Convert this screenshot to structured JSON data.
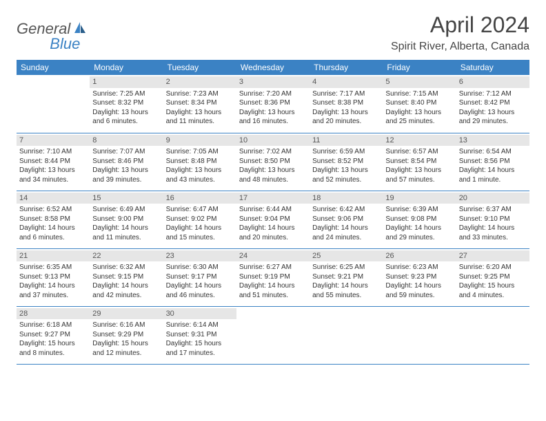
{
  "logo": {
    "part1": "General",
    "part2": "Blue"
  },
  "title": "April 2024",
  "location": "Spirit River, Alberta, Canada",
  "accent_color": "#3b82c4",
  "daynum_bg": "#e6e6e6",
  "text_color": "#333333",
  "dow": [
    "Sunday",
    "Monday",
    "Tuesday",
    "Wednesday",
    "Thursday",
    "Friday",
    "Saturday"
  ],
  "weeks": [
    [
      {
        "n": "",
        "sr": "",
        "ss": "",
        "dl1": "",
        "dl2": ""
      },
      {
        "n": "1",
        "sr": "Sunrise: 7:25 AM",
        "ss": "Sunset: 8:32 PM",
        "dl1": "Daylight: 13 hours",
        "dl2": "and 6 minutes."
      },
      {
        "n": "2",
        "sr": "Sunrise: 7:23 AM",
        "ss": "Sunset: 8:34 PM",
        "dl1": "Daylight: 13 hours",
        "dl2": "and 11 minutes."
      },
      {
        "n": "3",
        "sr": "Sunrise: 7:20 AM",
        "ss": "Sunset: 8:36 PM",
        "dl1": "Daylight: 13 hours",
        "dl2": "and 16 minutes."
      },
      {
        "n": "4",
        "sr": "Sunrise: 7:17 AM",
        "ss": "Sunset: 8:38 PM",
        "dl1": "Daylight: 13 hours",
        "dl2": "and 20 minutes."
      },
      {
        "n": "5",
        "sr": "Sunrise: 7:15 AM",
        "ss": "Sunset: 8:40 PM",
        "dl1": "Daylight: 13 hours",
        "dl2": "and 25 minutes."
      },
      {
        "n": "6",
        "sr": "Sunrise: 7:12 AM",
        "ss": "Sunset: 8:42 PM",
        "dl1": "Daylight: 13 hours",
        "dl2": "and 29 minutes."
      }
    ],
    [
      {
        "n": "7",
        "sr": "Sunrise: 7:10 AM",
        "ss": "Sunset: 8:44 PM",
        "dl1": "Daylight: 13 hours",
        "dl2": "and 34 minutes."
      },
      {
        "n": "8",
        "sr": "Sunrise: 7:07 AM",
        "ss": "Sunset: 8:46 PM",
        "dl1": "Daylight: 13 hours",
        "dl2": "and 39 minutes."
      },
      {
        "n": "9",
        "sr": "Sunrise: 7:05 AM",
        "ss": "Sunset: 8:48 PM",
        "dl1": "Daylight: 13 hours",
        "dl2": "and 43 minutes."
      },
      {
        "n": "10",
        "sr": "Sunrise: 7:02 AM",
        "ss": "Sunset: 8:50 PM",
        "dl1": "Daylight: 13 hours",
        "dl2": "and 48 minutes."
      },
      {
        "n": "11",
        "sr": "Sunrise: 6:59 AM",
        "ss": "Sunset: 8:52 PM",
        "dl1": "Daylight: 13 hours",
        "dl2": "and 52 minutes."
      },
      {
        "n": "12",
        "sr": "Sunrise: 6:57 AM",
        "ss": "Sunset: 8:54 PM",
        "dl1": "Daylight: 13 hours",
        "dl2": "and 57 minutes."
      },
      {
        "n": "13",
        "sr": "Sunrise: 6:54 AM",
        "ss": "Sunset: 8:56 PM",
        "dl1": "Daylight: 14 hours",
        "dl2": "and 1 minute."
      }
    ],
    [
      {
        "n": "14",
        "sr": "Sunrise: 6:52 AM",
        "ss": "Sunset: 8:58 PM",
        "dl1": "Daylight: 14 hours",
        "dl2": "and 6 minutes."
      },
      {
        "n": "15",
        "sr": "Sunrise: 6:49 AM",
        "ss": "Sunset: 9:00 PM",
        "dl1": "Daylight: 14 hours",
        "dl2": "and 11 minutes."
      },
      {
        "n": "16",
        "sr": "Sunrise: 6:47 AM",
        "ss": "Sunset: 9:02 PM",
        "dl1": "Daylight: 14 hours",
        "dl2": "and 15 minutes."
      },
      {
        "n": "17",
        "sr": "Sunrise: 6:44 AM",
        "ss": "Sunset: 9:04 PM",
        "dl1": "Daylight: 14 hours",
        "dl2": "and 20 minutes."
      },
      {
        "n": "18",
        "sr": "Sunrise: 6:42 AM",
        "ss": "Sunset: 9:06 PM",
        "dl1": "Daylight: 14 hours",
        "dl2": "and 24 minutes."
      },
      {
        "n": "19",
        "sr": "Sunrise: 6:39 AM",
        "ss": "Sunset: 9:08 PM",
        "dl1": "Daylight: 14 hours",
        "dl2": "and 29 minutes."
      },
      {
        "n": "20",
        "sr": "Sunrise: 6:37 AM",
        "ss": "Sunset: 9:10 PM",
        "dl1": "Daylight: 14 hours",
        "dl2": "and 33 minutes."
      }
    ],
    [
      {
        "n": "21",
        "sr": "Sunrise: 6:35 AM",
        "ss": "Sunset: 9:13 PM",
        "dl1": "Daylight: 14 hours",
        "dl2": "and 37 minutes."
      },
      {
        "n": "22",
        "sr": "Sunrise: 6:32 AM",
        "ss": "Sunset: 9:15 PM",
        "dl1": "Daylight: 14 hours",
        "dl2": "and 42 minutes."
      },
      {
        "n": "23",
        "sr": "Sunrise: 6:30 AM",
        "ss": "Sunset: 9:17 PM",
        "dl1": "Daylight: 14 hours",
        "dl2": "and 46 minutes."
      },
      {
        "n": "24",
        "sr": "Sunrise: 6:27 AM",
        "ss": "Sunset: 9:19 PM",
        "dl1": "Daylight: 14 hours",
        "dl2": "and 51 minutes."
      },
      {
        "n": "25",
        "sr": "Sunrise: 6:25 AM",
        "ss": "Sunset: 9:21 PM",
        "dl1": "Daylight: 14 hours",
        "dl2": "and 55 minutes."
      },
      {
        "n": "26",
        "sr": "Sunrise: 6:23 AM",
        "ss": "Sunset: 9:23 PM",
        "dl1": "Daylight: 14 hours",
        "dl2": "and 59 minutes."
      },
      {
        "n": "27",
        "sr": "Sunrise: 6:20 AM",
        "ss": "Sunset: 9:25 PM",
        "dl1": "Daylight: 15 hours",
        "dl2": "and 4 minutes."
      }
    ],
    [
      {
        "n": "28",
        "sr": "Sunrise: 6:18 AM",
        "ss": "Sunset: 9:27 PM",
        "dl1": "Daylight: 15 hours",
        "dl2": "and 8 minutes."
      },
      {
        "n": "29",
        "sr": "Sunrise: 6:16 AM",
        "ss": "Sunset: 9:29 PM",
        "dl1": "Daylight: 15 hours",
        "dl2": "and 12 minutes."
      },
      {
        "n": "30",
        "sr": "Sunrise: 6:14 AM",
        "ss": "Sunset: 9:31 PM",
        "dl1": "Daylight: 15 hours",
        "dl2": "and 17 minutes."
      },
      {
        "n": "",
        "sr": "",
        "ss": "",
        "dl1": "",
        "dl2": ""
      },
      {
        "n": "",
        "sr": "",
        "ss": "",
        "dl1": "",
        "dl2": ""
      },
      {
        "n": "",
        "sr": "",
        "ss": "",
        "dl1": "",
        "dl2": ""
      },
      {
        "n": "",
        "sr": "",
        "ss": "",
        "dl1": "",
        "dl2": ""
      }
    ]
  ]
}
